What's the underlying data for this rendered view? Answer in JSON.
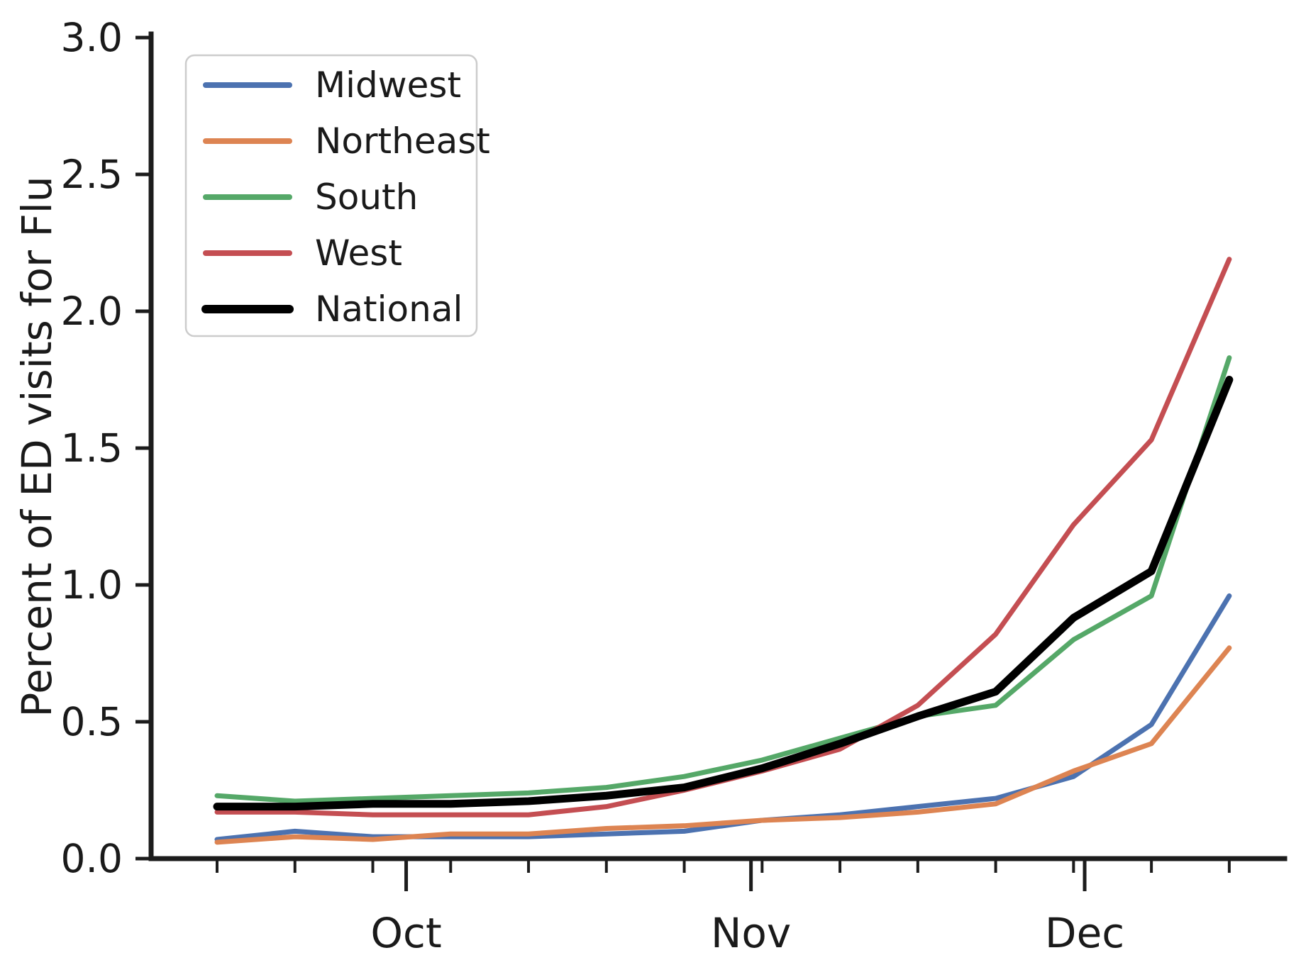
{
  "chart_data": {
    "type": "line",
    "title": "",
    "xlabel": "",
    "ylabel": "Percent of ED visits for Flu",
    "ylim": [
      0.0,
      3.0
    ],
    "yticks": [
      "0.0",
      "0.5",
      "1.0",
      "1.5",
      "2.0",
      "2.5",
      "3.0"
    ],
    "grid": false,
    "legend_position": "upper left",
    "axis_color": "#1c1c1c",
    "text_color": "#1a1a1a",
    "x_is_weekly_dates": true,
    "x_dates": [
      "Sep 14",
      "Sep 21",
      "Sep 28",
      "Oct 5",
      "Oct 12",
      "Oct 19",
      "Oct 26",
      "Nov 2",
      "Nov 9",
      "Nov 16",
      "Nov 23",
      "Nov 30",
      "Dec 7",
      "Dec 14"
    ],
    "x_days": [
      0,
      7,
      14,
      21,
      28,
      35,
      42,
      49,
      56,
      63,
      70,
      77,
      84,
      91
    ],
    "minor_tick_days": [
      0,
      7,
      14,
      21,
      28,
      35,
      42,
      49,
      56,
      63,
      70,
      77,
      84,
      91
    ],
    "major_ticks": [
      {
        "label": "Oct",
        "day": 17
      },
      {
        "label": "Nov",
        "day": 48
      },
      {
        "label": "Dec",
        "day": 78
      }
    ],
    "series": [
      {
        "name": "Midwest",
        "color": "#4C72B0",
        "width": 7,
        "values": [
          0.07,
          0.1,
          0.08,
          0.08,
          0.08,
          0.09,
          0.1,
          0.14,
          0.16,
          0.19,
          0.22,
          0.3,
          0.49,
          0.96
        ]
      },
      {
        "name": "Northeast",
        "color": "#DD8452",
        "width": 7,
        "values": [
          0.06,
          0.08,
          0.07,
          0.09,
          0.09,
          0.11,
          0.12,
          0.14,
          0.15,
          0.17,
          0.2,
          0.32,
          0.42,
          0.77
        ]
      },
      {
        "name": "South",
        "color": "#55A868",
        "width": 7,
        "values": [
          0.23,
          0.21,
          0.22,
          0.23,
          0.24,
          0.26,
          0.3,
          0.36,
          0.44,
          0.52,
          0.56,
          0.8,
          0.96,
          1.83
        ]
      },
      {
        "name": "West",
        "color": "#C44E52",
        "width": 7,
        "values": [
          0.17,
          0.17,
          0.16,
          0.16,
          0.16,
          0.19,
          0.25,
          0.32,
          0.4,
          0.56,
          0.82,
          1.22,
          1.53,
          2.19
        ]
      },
      {
        "name": "National",
        "color": "#000000",
        "width": 11,
        "values": [
          0.19,
          0.19,
          0.2,
          0.2,
          0.21,
          0.23,
          0.26,
          0.33,
          0.42,
          0.52,
          0.61,
          0.88,
          1.05,
          1.75
        ]
      }
    ],
    "legend_entries": [
      "Midwest",
      "Northeast",
      "South",
      "West",
      "National"
    ]
  }
}
